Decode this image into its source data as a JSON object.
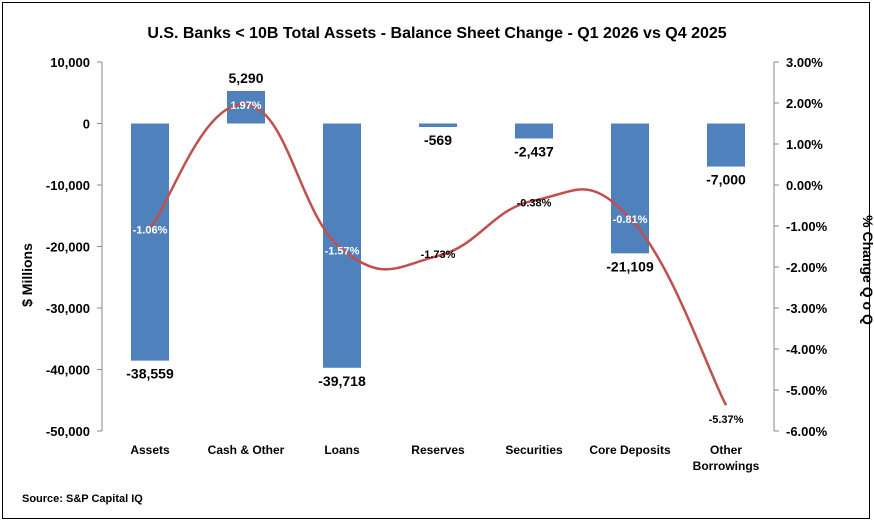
{
  "chart_data": {
    "type": "bar",
    "title": "U.S. Banks < 10B Total Assets - Balance Sheet Change - Q1 2026 vs Q4 2025",
    "categories": [
      [
        "Assets"
      ],
      [
        "Cash & Other"
      ],
      [
        "Loans"
      ],
      [
        "Reserves"
      ],
      [
        "Securities"
      ],
      [
        "Core Deposits"
      ],
      [
        "Other",
        "Borrowings"
      ]
    ],
    "ylabel": "$ Millions",
    "y2label": "% Change Q o Q",
    "ylim": [
      -50000,
      10000
    ],
    "y2lim": [
      -6,
      3
    ],
    "yticks": [
      10000,
      0,
      -10000,
      -20000,
      -30000,
      -40000,
      -50000
    ],
    "ytick_labels": [
      "10,000",
      "0",
      "-10,000",
      "-20,000",
      "-30,000",
      "-40,000",
      "-50,000"
    ],
    "y2ticks": [
      3,
      2,
      1,
      0,
      -1,
      -2,
      -3,
      -4,
      -5,
      -6
    ],
    "y2tick_labels": [
      "3.00%",
      "2.00%",
      "1.00%",
      "0.00%",
      "-1.00%",
      "-2.00%",
      "-3.00%",
      "-4.00%",
      "-5.00%",
      "-6.00%"
    ],
    "series": [
      {
        "type": "bar",
        "axis": "left",
        "values": [
          -38559,
          5290,
          -39718,
          -569,
          -2437,
          -21109,
          -7000
        ],
        "labels": [
          "-38,559",
          "5,290",
          "-39,718",
          "-569",
          "-2,437",
          "-21,109",
          "-7,000"
        ],
        "color": "#4f81bd"
      },
      {
        "type": "line",
        "axis": "right",
        "values": [
          -1.06,
          1.97,
          -1.57,
          -1.73,
          -0.38,
          -0.81,
          -5.37
        ],
        "labels": [
          "-1.06%",
          "1.97%",
          "-1.57%",
          "-1.73%",
          "-0.38%",
          "-0.81%",
          "-5.37%"
        ],
        "color": "#c0504d"
      }
    ],
    "grid": false,
    "legend": "none"
  },
  "source": "Source: S&P Capital IQ"
}
